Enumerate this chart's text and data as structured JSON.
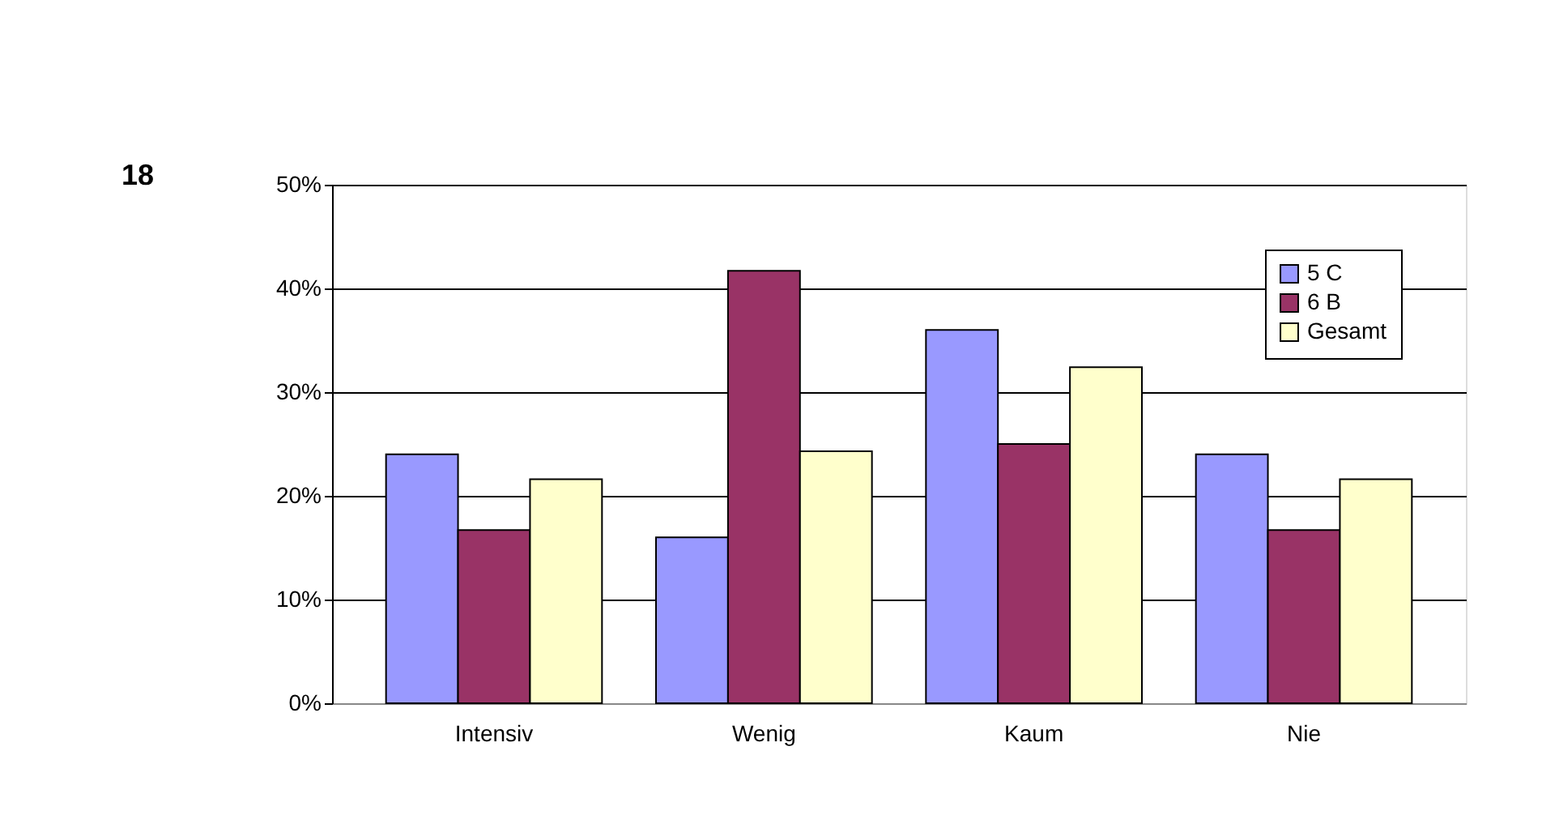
{
  "chart_data": {
    "type": "bar",
    "categories": [
      "Intensiv",
      "Wenig",
      "Kaum",
      "Nie"
    ],
    "series": [
      {
        "name": "5 C",
        "color": "#9999ff",
        "values": [
          24,
          16,
          36,
          24
        ]
      },
      {
        "name": "6 B",
        "color": "#993366",
        "values": [
          16.7,
          41.7,
          25,
          16.7
        ]
      },
      {
        "name": "Gesamt",
        "color": "#ffffcc",
        "values": [
          21.6,
          24.3,
          32.4,
          21.6
        ]
      }
    ],
    "ylim": [
      0,
      50
    ],
    "yticks": [
      {
        "value": 0,
        "label": "0%"
      },
      {
        "value": 10,
        "label": "10%"
      },
      {
        "value": 20,
        "label": "20%"
      },
      {
        "value": 30,
        "label": "30%"
      },
      {
        "value": 40,
        "label": "40%"
      },
      {
        "value": 50,
        "label": "50%"
      }
    ],
    "grid": "y",
    "legend": "top right",
    "annotations": [
      "18"
    ]
  }
}
